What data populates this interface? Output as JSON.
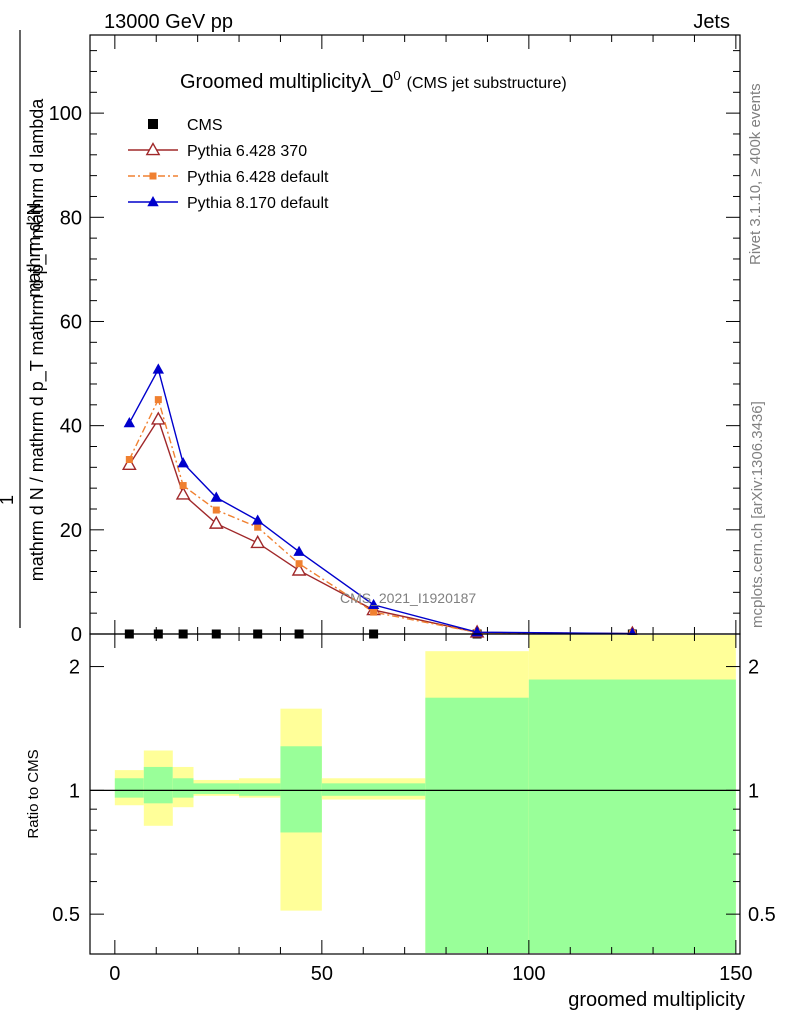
{
  "header": {
    "left": "13000 GeV pp",
    "right": "Jets"
  },
  "side": {
    "rivet": "Rivet 3.1.10, ≥ 400k events",
    "mcplots": "mcplots.cern.ch [arXiv:1306.3436]"
  },
  "watermark": "CMS_2021_I1920187",
  "chart_data": [
    {
      "type": "line",
      "title": "Groomed multiplicityλ_0",
      "title_sup": "0",
      "subtitle": "(CMS jet substructure)",
      "ylabel_num": "mathrm d²N",
      "ylabel_mid": "mathrm d p_T mathrm d p_T mathrm d lambda",
      "ylabel_one": "1",
      "ylabel_den": "mathrm d N / mathrm d p_T mathrm d p_T mathrm d lambda",
      "xlim": [
        -6,
        151
      ],
      "ylim": [
        0,
        115
      ],
      "yticks": [
        0,
        20,
        40,
        60,
        80,
        100
      ],
      "x_bins": [
        [
          0,
          7
        ],
        [
          7,
          14
        ],
        [
          14,
          19
        ],
        [
          19,
          30
        ],
        [
          30,
          40
        ],
        [
          40,
          50
        ],
        [
          50,
          75
        ],
        [
          75,
          100
        ],
        [
          100,
          150
        ]
      ],
      "x": [
        3.5,
        10.5,
        16.5,
        24.5,
        34.5,
        44.5,
        62.5,
        87.5,
        125
      ],
      "series": [
        {
          "name": "CMS",
          "style": "square",
          "color": "#000000",
          "values": [
            0,
            0,
            0,
            0,
            0,
            0,
            0,
            0,
            0
          ]
        },
        {
          "name": "Pythia 6.428 370",
          "style": "open-triangle",
          "color": "#a0282a",
          "values": [
            32.5,
            41.2,
            26.8,
            21.2,
            17.5,
            12.2,
            4.6,
            0.3,
            0.08
          ]
        },
        {
          "name": "Pythia 6.428 default",
          "style": "square-dashdot",
          "color": "#f08030",
          "values": [
            33.5,
            45.0,
            28.5,
            23.8,
            20.5,
            13.5,
            4.2,
            0.3,
            0.07
          ]
        },
        {
          "name": "Pythia 8.170 default",
          "style": "filled-triangle",
          "color": "#0000cc",
          "values": [
            40.5,
            50.8,
            32.8,
            26.2,
            21.8,
            15.8,
            5.6,
            0.35,
            0.09
          ]
        }
      ]
    },
    {
      "type": "area",
      "ylabel": "Ratio to CMS",
      "xlabel": "groomed multiplicity",
      "xticks": [
        0,
        50,
        100,
        150
      ],
      "yticks": [
        0.5,
        1,
        2
      ],
      "ylim_log": [
        0.4,
        2.4
      ],
      "bands": [
        {
          "x0": 0,
          "x1": 7,
          "y_lo": 0.92,
          "y_hi": 1.12,
          "g_lo": 0.96,
          "g_hi": 1.07
        },
        {
          "x0": 7,
          "x1": 14,
          "y_lo": 0.82,
          "y_hi": 1.25,
          "g_lo": 0.93,
          "g_hi": 1.14
        },
        {
          "x0": 14,
          "x1": 19,
          "y_lo": 0.91,
          "y_hi": 1.14,
          "g_lo": 0.96,
          "g_hi": 1.07
        },
        {
          "x0": 19,
          "x1": 30,
          "y_lo": 0.97,
          "y_hi": 1.06,
          "g_lo": 0.98,
          "g_hi": 1.04
        },
        {
          "x0": 30,
          "x1": 40,
          "y_lo": 0.96,
          "y_hi": 1.07,
          "g_lo": 0.97,
          "g_hi": 1.04
        },
        {
          "x0": 40,
          "x1": 50,
          "y_lo": 0.51,
          "y_hi": 1.58,
          "g_lo": 0.79,
          "g_hi": 1.28
        },
        {
          "x0": 50,
          "x1": 75,
          "y_lo": 0.95,
          "y_hi": 1.07,
          "g_lo": 0.97,
          "g_hi": 1.04
        },
        {
          "x0": 75,
          "x1": 100,
          "y_lo": 0.38,
          "y_hi": 2.18,
          "g_lo": 0.38,
          "g_hi": 1.68
        },
        {
          "x0": 100,
          "x1": 150,
          "y_lo": 0.38,
          "y_hi": 2.45,
          "g_lo": 0.38,
          "g_hi": 1.86
        }
      ]
    }
  ]
}
